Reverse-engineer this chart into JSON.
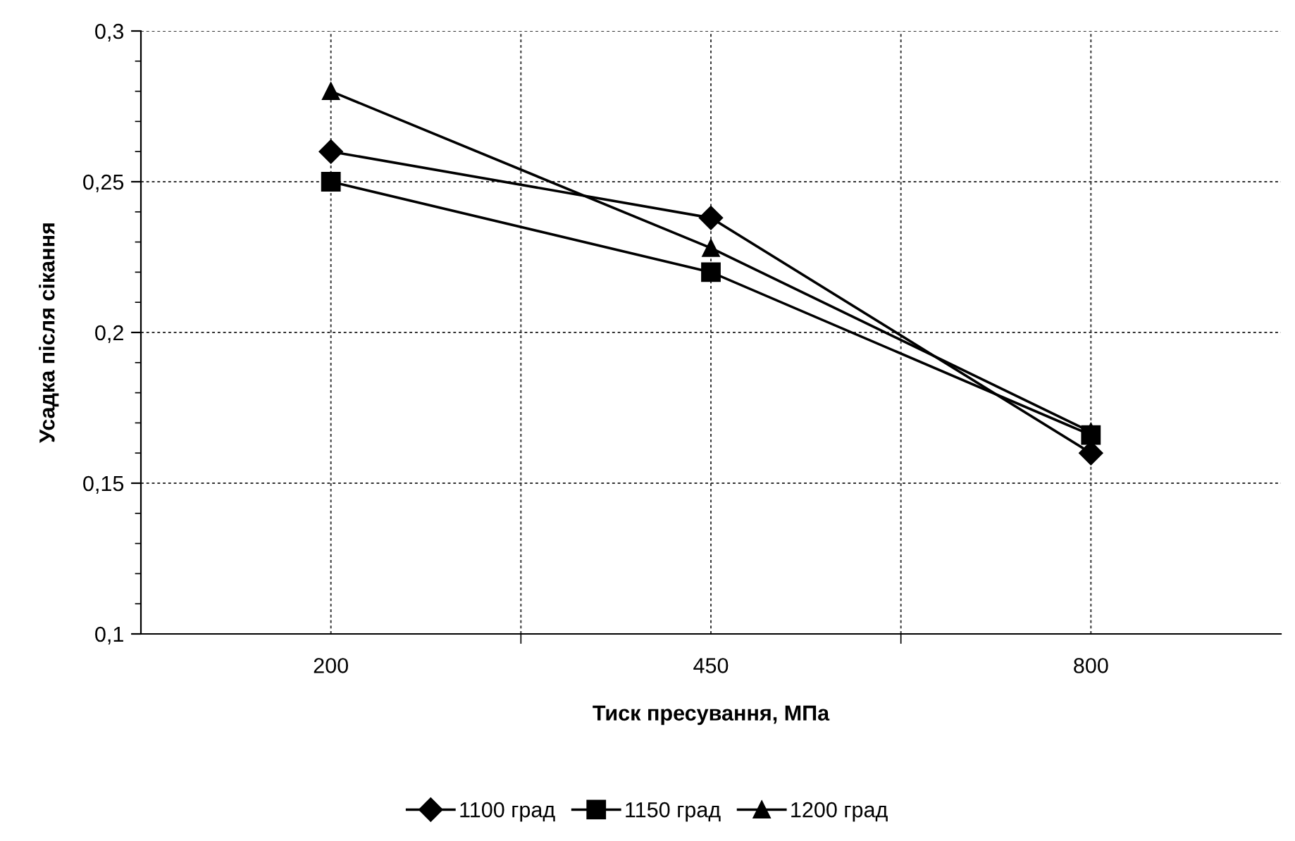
{
  "chart_data": {
    "type": "line",
    "xlabel": "Тиск пресування, МПа",
    "ylabel": "Усадка після сікання",
    "categories": [
      "200",
      "450",
      "800"
    ],
    "series": [
      {
        "name": "1100 град",
        "color": "#000000",
        "marker": "diamond",
        "values": [
          0.26,
          0.238,
          0.16
        ]
      },
      {
        "name": "1150 град",
        "color": "#000000",
        "marker": "square",
        "values": [
          0.25,
          0.22,
          0.166
        ]
      },
      {
        "name": "1200 град",
        "color": "#000000",
        "marker": "triangle",
        "values": [
          0.28,
          0.228,
          0.167
        ]
      }
    ],
    "ylim": [
      0.1,
      0.3
    ],
    "yticks": [
      {
        "value": 0.1,
        "label": "0,1"
      },
      {
        "value": 0.15,
        "label": "0,15"
      },
      {
        "value": 0.2,
        "label": "0,2"
      },
      {
        "value": 0.25,
        "label": "0,25"
      },
      {
        "value": 0.3,
        "label": "0,3"
      }
    ],
    "grid": true,
    "legend": "bottom",
    "line_style": "solid"
  }
}
